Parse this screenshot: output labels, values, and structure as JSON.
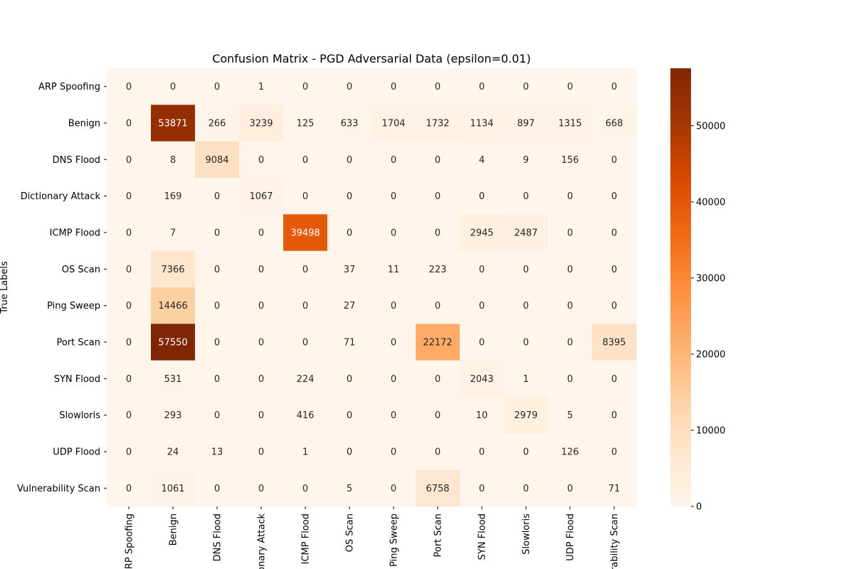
{
  "chart_data": {
    "type": "heatmap",
    "title": "Confusion Matrix - PGD Adversarial Data (epsilon=0.01)",
    "xlabel": "",
    "ylabel": "True Labels",
    "row_labels": [
      "ARP Spoofing",
      "Benign",
      "DNS Flood",
      "Dictionary Attack",
      "ICMP Flood",
      "OS Scan",
      "Ping Sweep",
      "Port Scan",
      "SYN Flood",
      "Slowloris",
      "UDP Flood",
      "Vulnerability Scan"
    ],
    "col_labels": [
      "ARP Spoofing",
      "Benign",
      "DNS Flood",
      "Dictionary Attack",
      "ICMP Flood",
      "OS Scan",
      "Ping Sweep",
      "Port Scan",
      "SYN Flood",
      "Slowloris",
      "UDP Flood",
      "Vulnerability Scan"
    ],
    "values": [
      [
        0,
        0,
        0,
        1,
        0,
        0,
        0,
        0,
        0,
        0,
        0,
        0
      ],
      [
        0,
        53871,
        266,
        3239,
        125,
        633,
        1704,
        1732,
        1134,
        897,
        1315,
        668
      ],
      [
        0,
        8,
        9084,
        0,
        0,
        0,
        0,
        0,
        4,
        9,
        156,
        0
      ],
      [
        0,
        169,
        0,
        1067,
        0,
        0,
        0,
        0,
        0,
        0,
        0,
        0
      ],
      [
        0,
        7,
        0,
        0,
        39498,
        0,
        0,
        0,
        2945,
        2487,
        0,
        0
      ],
      [
        0,
        7366,
        0,
        0,
        0,
        37,
        11,
        223,
        0,
        0,
        0,
        0
      ],
      [
        0,
        14466,
        0,
        0,
        0,
        27,
        0,
        0,
        0,
        0,
        0,
        0
      ],
      [
        0,
        57550,
        0,
        0,
        0,
        71,
        0,
        22172,
        0,
        0,
        0,
        8395
      ],
      [
        0,
        531,
        0,
        0,
        224,
        0,
        0,
        0,
        2043,
        1,
        0,
        0
      ],
      [
        0,
        293,
        0,
        0,
        416,
        0,
        0,
        0,
        10,
        2979,
        5,
        0
      ],
      [
        0,
        24,
        13,
        0,
        1,
        0,
        0,
        0,
        0,
        0,
        126,
        0
      ],
      [
        0,
        1061,
        0,
        0,
        0,
        5,
        0,
        6758,
        0,
        0,
        0,
        71
      ]
    ],
    "colormap": "Oranges",
    "colorbar": {
      "ticks": [
        0,
        10000,
        20000,
        30000,
        40000,
        50000
      ],
      "tick_labels": [
        "0",
        "10000",
        "20000",
        "30000",
        "40000",
        "50000"
      ],
      "range": [
        0,
        57550
      ]
    },
    "grid": false,
    "legend": "colorbar-right"
  }
}
